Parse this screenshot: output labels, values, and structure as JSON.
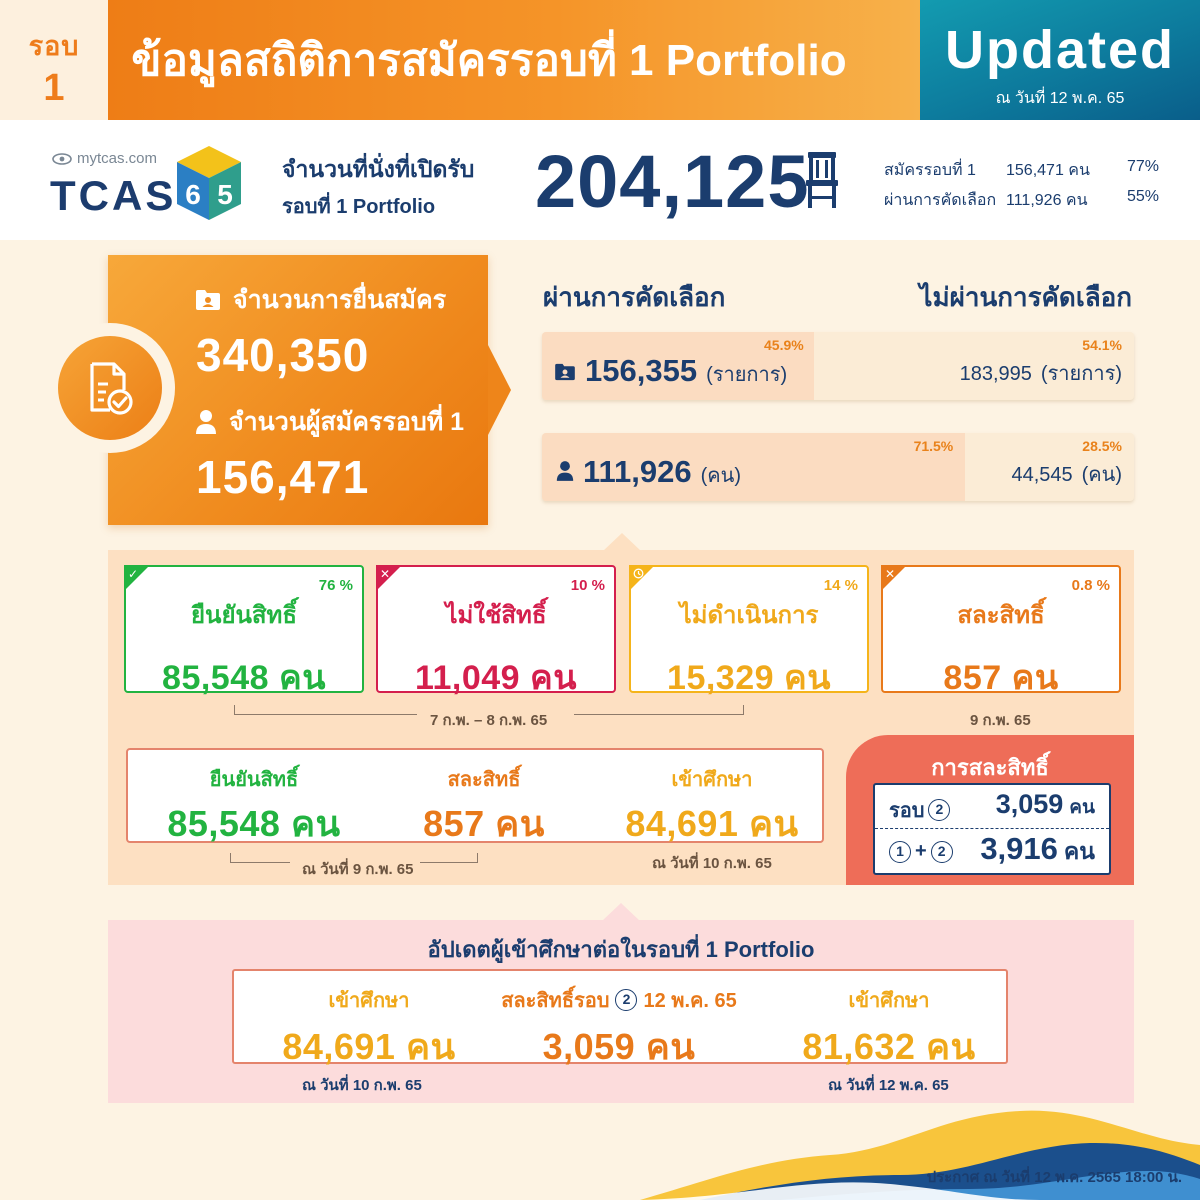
{
  "colors": {
    "navy": "#1b3d6e",
    "orange": "#ee7c1b",
    "teal": "#0d7b9d",
    "green": "#22b340",
    "crimson": "#d41f4d",
    "yellow": "#f5b41a",
    "dark_orange": "#e8791a",
    "coral": "#ee6d58",
    "gold_text": "#f0a91b"
  },
  "header": {
    "round_word": "รอบ",
    "round_number": "1",
    "title": "ข้อมูลสถิติการสมัครรอบที่ 1 Portfolio",
    "updated_label": "Updated",
    "updated_date": "ณ วันที่ 12 พ.ค. 65"
  },
  "logo": {
    "domain": "mytcas.com",
    "brand": "TCAS",
    "year_digits": [
      "6",
      "5"
    ]
  },
  "seats": {
    "label_line1": "จำนวนที่นั่งที่เปิดรับ",
    "label_line2": "รอบที่ 1 Portfolio",
    "total": "204,125",
    "icon": "chair-icon",
    "rows": [
      {
        "label": "สมัครรอบที่ 1",
        "value": "156,471 คน",
        "percent": "77%"
      },
      {
        "label": "ผ่านการคัดเลือก",
        "value": "111,926 คน",
        "percent": "55%"
      }
    ]
  },
  "applications": {
    "icon": "document-check-icon",
    "submissions_label": "จำนวนการยื่นสมัคร",
    "submissions_icon": "folder-user-icon",
    "submissions_value": "340,350",
    "applicants_label": "จำนวนผู้สมัครรอบที่ 1",
    "applicants_icon": "person-icon",
    "applicants_value": "156,471"
  },
  "selection": {
    "pass_heading": "ผ่านการคัดเลือก",
    "fail_heading": "ไม่ผ่านการคัดเลือก",
    "rows": [
      {
        "icon": "folder-user-icon",
        "pass_share": 0.459,
        "pass_percent": "45.9%",
        "pass_value": "156,355",
        "pass_unit": "(รายการ)",
        "fail_percent": "54.1%",
        "fail_value": "183,995",
        "fail_unit": "(รายการ)"
      },
      {
        "icon": "person-icon",
        "pass_share": 0.715,
        "pass_percent": "71.5%",
        "pass_value": "111,926",
        "pass_unit": "(คน)",
        "fail_percent": "28.5%",
        "fail_value": "44,545",
        "fail_unit": "(คน)"
      }
    ]
  },
  "status": {
    "boxes": [
      {
        "label": "ยืนยันสิทธิ์",
        "value": "85,548 คน",
        "percent": "76 %",
        "icon": "check-icon",
        "color": "#22b340"
      },
      {
        "label": "ไม่ใช้สิทธิ์",
        "value": "11,049 คน",
        "percent": "10 %",
        "icon": "close-icon",
        "color": "#d41f4d"
      },
      {
        "label": "ไม่ดำเนินการ",
        "value": "15,329 คน",
        "percent": "14 %",
        "icon": "clock-icon",
        "color": "#f5b41a"
      },
      {
        "label": "สละสิทธิ์",
        "value": "857 คน",
        "percent": "0.8 %",
        "icon": "close-icon",
        "color": "#e8791a"
      }
    ],
    "range_note": "7 ก.พ. – 8 ก.พ. 65",
    "forfeit_note": "9 ก.พ. 65"
  },
  "summary": {
    "confirm_label": "ยืนยันสิทธิ์",
    "confirm_value": "85,548 คน",
    "forfeit_label": "สละสิทธิ์",
    "forfeit_value": "857 คน",
    "enroll_label": "เข้าศึกษา",
    "enroll_value": "84,691 คน",
    "note_left": "ณ วันที่ 9 ก.พ. 65",
    "note_right": "ณ วันที่ 10 ก.พ. 65"
  },
  "forfeit_panel": {
    "title": "การสละสิทธิ์",
    "row1_word": "รอบ",
    "row1_circle": "2",
    "row1_value": "3,059",
    "row1_unit": "คน",
    "row2_circle_a": "1",
    "row2_plus": "+",
    "row2_circle_b": "2",
    "row2_value": "3,916",
    "row2_unit": "คน"
  },
  "update": {
    "title": "อัปเดตผู้เข้าศึกษาต่อในรอบที่ 1 Portfolio",
    "col1_label": "เข้าศึกษา",
    "col1_value": "84,691 คน",
    "col2_label_pre": "สละสิทธิ์รอบ",
    "col2_circle": "2",
    "col2_label_post": "12 พ.ค. 65",
    "col2_value": "3,059 คน",
    "col3_label": "เข้าศึกษา",
    "col3_value": "81,632 คน",
    "note_left": "ณ วันที่ 10 ก.พ. 65",
    "note_right": "ณ วันที่ 12 พ.ค. 65"
  },
  "footer": {
    "announcement": "ประกาศ ณ วันที่ 12 พ.ค.  2565 18:00 น."
  }
}
